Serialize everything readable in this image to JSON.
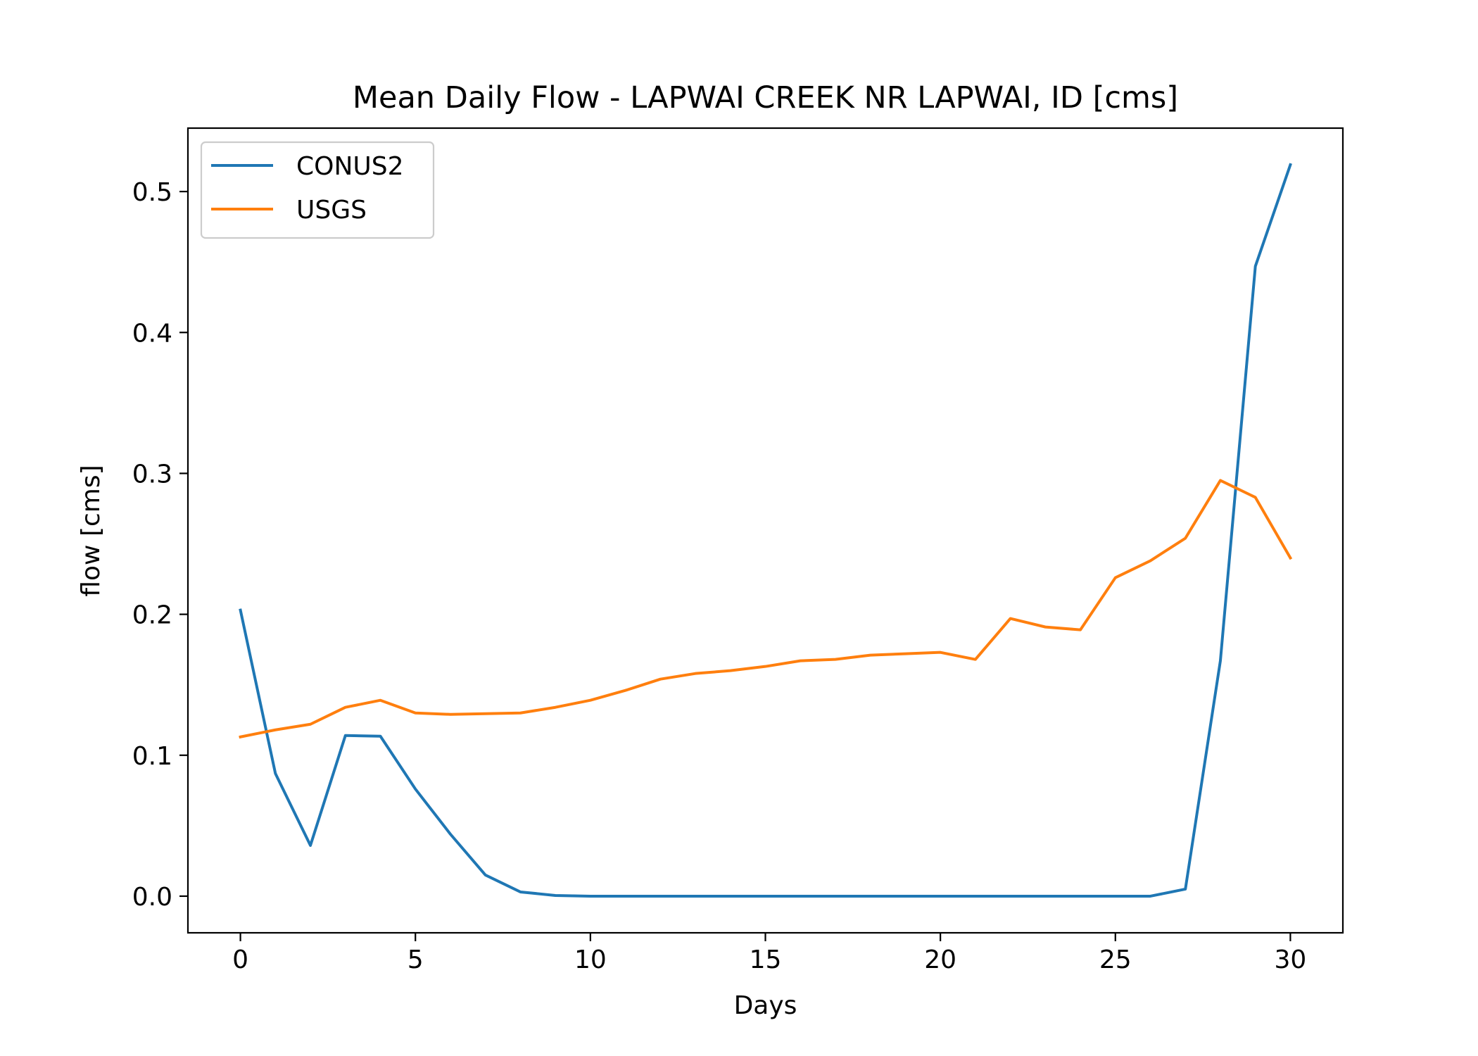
{
  "chart_data": {
    "type": "line",
    "title": "Mean Daily Flow - LAPWAI CREEK NR LAPWAI, ID [cms]",
    "xlabel": "Days",
    "ylabel": "flow [cms]",
    "xlim": [
      -1.5,
      31.5
    ],
    "ylim": [
      -0.026,
      0.545
    ],
    "xticks": [
      0,
      5,
      10,
      15,
      20,
      25,
      30
    ],
    "yticks": [
      0.0,
      0.1,
      0.2,
      0.3,
      0.4,
      0.5
    ],
    "ytick_labels": [
      "0.0",
      "0.1",
      "0.2",
      "0.3",
      "0.4",
      "0.5"
    ],
    "grid": false,
    "legend_position": "top-left",
    "x": [
      0,
      1,
      2,
      3,
      4,
      5,
      6,
      7,
      8,
      9,
      10,
      11,
      12,
      13,
      14,
      15,
      16,
      17,
      18,
      19,
      20,
      21,
      22,
      23,
      24,
      25,
      26,
      27,
      28,
      29,
      30
    ],
    "series": [
      {
        "name": "CONUS2",
        "color": "#1f77b4",
        "values": [
          0.203,
          0.087,
          0.036,
          0.114,
          0.1135,
          0.076,
          0.044,
          0.015,
          0.003,
          0.0005,
          0,
          0,
          0,
          0,
          0,
          0,
          0,
          0,
          0,
          0,
          0,
          0,
          0,
          0,
          0,
          0,
          0,
          0.005,
          0.167,
          0.447,
          0.519
        ]
      },
      {
        "name": "USGS",
        "color": "#ff7f0e",
        "values": [
          0.113,
          0.118,
          0.122,
          0.134,
          0.139,
          0.13,
          0.129,
          0.1295,
          0.13,
          0.134,
          0.139,
          0.146,
          0.154,
          0.158,
          0.16,
          0.163,
          0.167,
          0.168,
          0.171,
          0.172,
          0.173,
          0.168,
          0.197,
          0.191,
          0.189,
          0.226,
          0.238,
          0.254,
          0.295,
          0.283,
          0.24
        ]
      }
    ]
  }
}
